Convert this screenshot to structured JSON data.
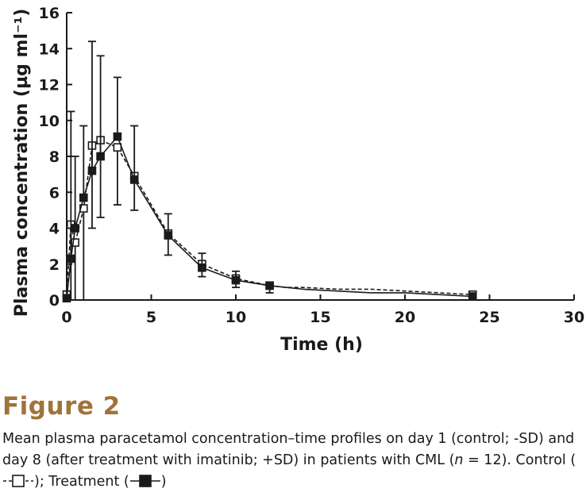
{
  "figure": {
    "label": "Figure 2",
    "caption_text": "Mean plasma paracetamol concentration–time profiles on day 1 (control; -SD) and day 8 (after treatment with imatinib; +SD) in patients with CML (",
    "caption_n": "n",
    "caption_n_value": " = 12). Control (",
    "caption_control_end": "); Treatment (",
    "caption_end": ")"
  },
  "chart_data": {
    "type": "line",
    "xlabel": "Time (h)",
    "ylabel": "Plasma concentration (µg ml⁻¹)",
    "xlim": [
      0,
      30
    ],
    "ylim": [
      0,
      16
    ],
    "xticks": [
      0,
      5,
      10,
      15,
      20,
      25,
      30
    ],
    "yticks": [
      0,
      2,
      4,
      6,
      8,
      10,
      12,
      14,
      16
    ],
    "grid": false,
    "series": [
      {
        "name": "Control",
        "line_style": "dashed",
        "marker": "open-square",
        "color": "#1a1a1a",
        "points": [
          {
            "x": 0,
            "y": 0.3
          },
          {
            "x": 0.25,
            "y": 4.2
          },
          {
            "x": 0.5,
            "y": 3.2
          },
          {
            "x": 1,
            "y": 5.1
          },
          {
            "x": 1.5,
            "y": 8.6
          },
          {
            "x": 2,
            "y": 8.9
          },
          {
            "x": 3,
            "y": 8.5
          },
          {
            "x": 4,
            "y": 6.9
          },
          {
            "x": 6,
            "y": 3.7
          },
          {
            "x": 8,
            "y": 2.0
          },
          {
            "x": 10,
            "y": 1.2
          },
          {
            "x": 12,
            "y": 0.8
          },
          {
            "x": 13,
            "y": 0.7
          },
          {
            "x": 14,
            "y": 0.7
          },
          {
            "x": 16,
            "y": 0.6
          },
          {
            "x": 18,
            "y": 0.6
          },
          {
            "x": 20,
            "y": 0.5
          },
          {
            "x": 22,
            "y": 0.4
          },
          {
            "x": 24,
            "y": 0.3
          }
        ],
        "error_bars": [
          {
            "x": 0,
            "low": 0.0
          },
          {
            "x": 0.25,
            "low": 0.0
          },
          {
            "x": 0.5,
            "low": 0.0
          },
          {
            "x": 1,
            "low": 0.0
          },
          {
            "x": 1.5,
            "low": 4.0
          },
          {
            "x": 2,
            "low": 4.6
          },
          {
            "x": 3,
            "low": 5.3
          },
          {
            "x": 4,
            "low": 5.0
          },
          {
            "x": 6,
            "low": 2.5
          },
          {
            "x": 8,
            "low": 1.3
          },
          {
            "x": 10,
            "low": 0.7
          },
          {
            "x": 12,
            "low": 0.4
          },
          {
            "x": 24,
            "low": 0.1
          }
        ]
      },
      {
        "name": "Treatment",
        "line_style": "solid",
        "marker": "filled-square",
        "color": "#1a1a1a",
        "points": [
          {
            "x": 0,
            "y": 0.1
          },
          {
            "x": 0.25,
            "y": 2.3
          },
          {
            "x": 0.5,
            "y": 4.0
          },
          {
            "x": 1,
            "y": 5.7
          },
          {
            "x": 1.5,
            "y": 7.2
          },
          {
            "x": 2,
            "y": 8.0
          },
          {
            "x": 3,
            "y": 9.1
          },
          {
            "x": 4,
            "y": 6.7
          },
          {
            "x": 6,
            "y": 3.6
          },
          {
            "x": 8,
            "y": 1.8
          },
          {
            "x": 10,
            "y": 1.1
          },
          {
            "x": 12,
            "y": 0.8
          },
          {
            "x": 13,
            "y": 0.7
          },
          {
            "x": 14,
            "y": 0.6
          },
          {
            "x": 16,
            "y": 0.5
          },
          {
            "x": 18,
            "y": 0.4
          },
          {
            "x": 20,
            "y": 0.4
          },
          {
            "x": 22,
            "y": 0.3
          },
          {
            "x": 24,
            "y": 0.2
          }
        ],
        "error_bars": [
          {
            "x": 0,
            "high": 0.5
          },
          {
            "x": 0.25,
            "high": 10.5
          },
          {
            "x": 0.5,
            "high": 8.0
          },
          {
            "x": 1,
            "high": 9.7
          },
          {
            "x": 1.5,
            "high": 14.4
          },
          {
            "x": 2,
            "high": 13.6
          },
          {
            "x": 3,
            "high": 12.4
          },
          {
            "x": 4,
            "high": 9.7
          },
          {
            "x": 6,
            "high": 4.8
          },
          {
            "x": 8,
            "high": 2.6
          },
          {
            "x": 10,
            "high": 1.6
          },
          {
            "x": 12,
            "high": 1.0
          },
          {
            "x": 24,
            "high": 0.35
          }
        ]
      }
    ]
  }
}
